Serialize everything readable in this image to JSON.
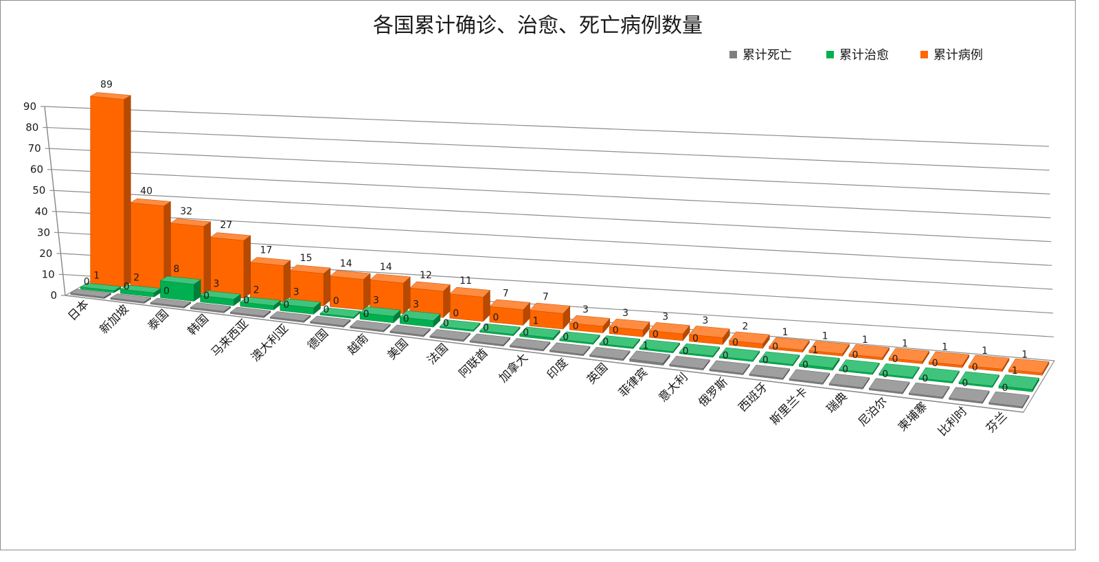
{
  "chart_data": {
    "type": "bar",
    "title": "各国累计确诊、治愈、死亡病例数量",
    "categories": [
      "日本",
      "新加坡",
      "泰国",
      "韩国",
      "马来西亚",
      "澳大利亚",
      "德国",
      "越南",
      "美国",
      "法国",
      "阿联酋",
      "加拿大",
      "印度",
      "英国",
      "菲律宾",
      "意大利",
      "俄罗斯",
      "西班牙",
      "斯里兰卡",
      "瑞典",
      "尼泊尔",
      "柬埔寨",
      "比利时",
      "芬兰"
    ],
    "series": [
      {
        "name": "累计死亡",
        "color": "#7f7f7f",
        "values": [
          0,
          0,
          0,
          0,
          0,
          0,
          0,
          0,
          0,
          0,
          0,
          0,
          0,
          0,
          1,
          0,
          0,
          0,
          0,
          0,
          0,
          0,
          0,
          0
        ]
      },
      {
        "name": "累计治愈",
        "color": "#00b050",
        "values": [
          1,
          2,
          8,
          3,
          2,
          3,
          0,
          3,
          3,
          0,
          0,
          1,
          0,
          0,
          0,
          0,
          0,
          0,
          1,
          0,
          0,
          0,
          0,
          1
        ]
      },
      {
        "name": "累计病例",
        "color": "#ff6600",
        "values": [
          89,
          40,
          32,
          27,
          17,
          15,
          14,
          14,
          12,
          11,
          7,
          7,
          3,
          3,
          3,
          3,
          2,
          1,
          1,
          1,
          1,
          1,
          1,
          1
        ]
      }
    ],
    "yticks": [
      "0",
      "10",
      "20",
      "30",
      "40",
      "50",
      "60",
      "70",
      "80",
      "90"
    ],
    "ylim": [
      0,
      90
    ],
    "legend_position": "top-right",
    "grid": true
  }
}
